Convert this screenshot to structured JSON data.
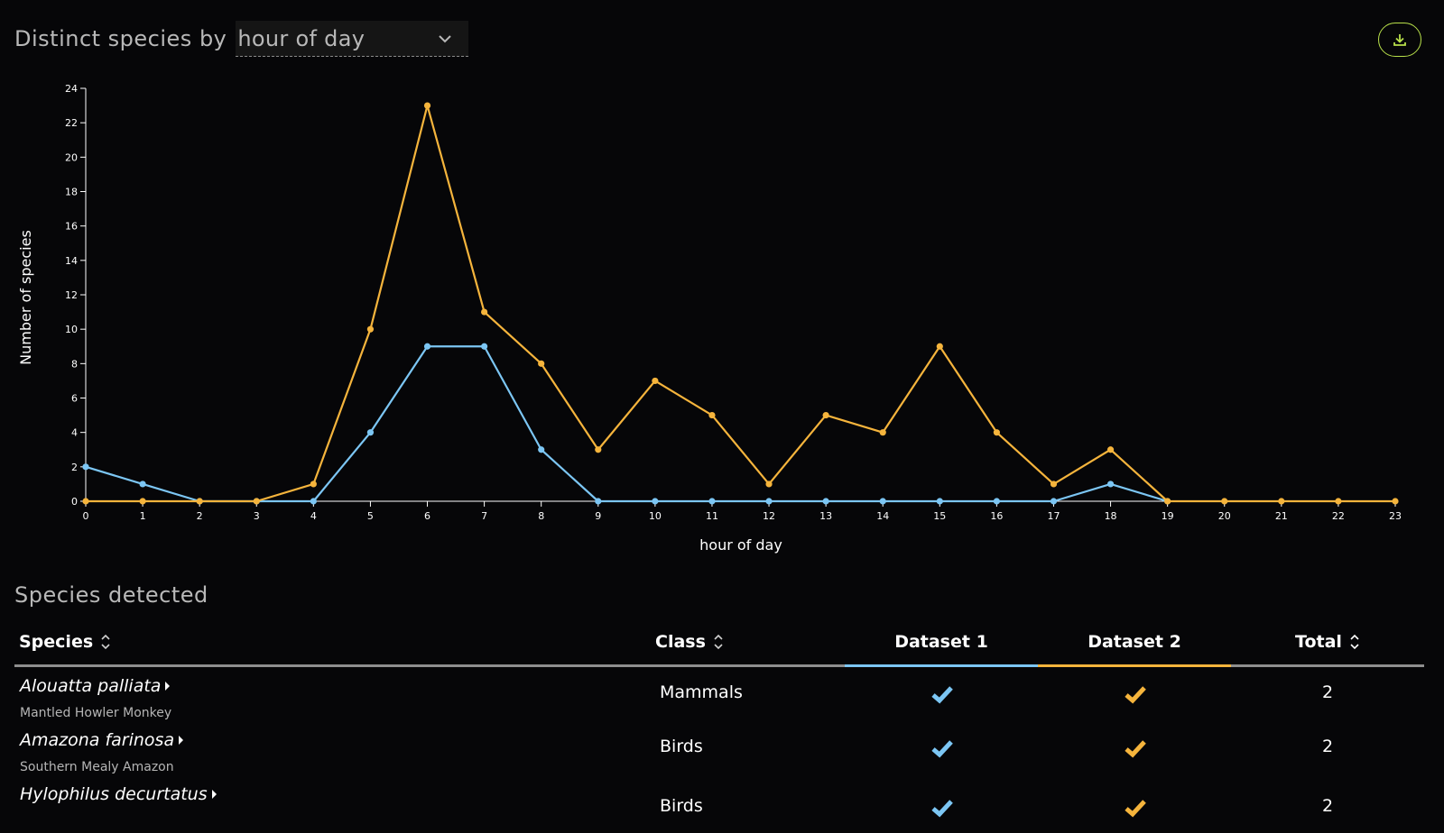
{
  "header": {
    "title_prefix": "Distinct species by",
    "group_by_value": "hour of day",
    "download_icon": "download-icon"
  },
  "colors": {
    "dataset1": "#7cc6f4",
    "dataset2": "#f5b43c",
    "accent": "#b8e04a"
  },
  "chart_data": {
    "type": "line",
    "xlabel": "hour of day",
    "ylabel": "Number of species",
    "x": [
      0,
      1,
      2,
      3,
      4,
      5,
      6,
      7,
      8,
      9,
      10,
      11,
      12,
      13,
      14,
      15,
      16,
      17,
      18,
      19,
      20,
      21,
      22,
      23
    ],
    "ylim": [
      0,
      24
    ],
    "yticks": [
      0,
      2,
      4,
      6,
      8,
      10,
      12,
      14,
      16,
      18,
      20,
      22,
      24
    ],
    "grid": false,
    "series": [
      {
        "color": "#7cc6f4",
        "values": [
          2,
          1,
          0,
          0,
          0,
          4,
          9,
          9,
          3,
          0,
          0,
          0,
          0,
          0,
          0,
          0,
          0,
          0,
          1,
          0,
          null,
          null,
          null,
          null
        ]
      },
      {
        "color": "#f5b43c",
        "values": [
          0,
          0,
          0,
          0,
          1,
          10,
          23,
          11,
          8,
          3,
          7,
          5,
          1,
          5,
          4,
          9,
          4,
          1,
          3,
          0,
          0,
          0,
          0,
          0
        ]
      }
    ]
  },
  "species_section": {
    "title": "Species detected",
    "columns": {
      "species": "Species",
      "class": "Class",
      "dataset1": "Dataset 1",
      "dataset2": "Dataset 2",
      "total": "Total"
    },
    "rows": [
      {
        "scientific": "Alouatta palliata",
        "common": "Mantled Howler Monkey",
        "class": "Mammals",
        "dataset1": true,
        "dataset2": true,
        "total": "2"
      },
      {
        "scientific": "Amazona farinosa",
        "common": "Southern Mealy Amazon",
        "class": "Birds",
        "dataset1": true,
        "dataset2": true,
        "total": "2"
      },
      {
        "scientific": "Hylophilus decurtatus",
        "common": "",
        "class": "Birds",
        "dataset1": true,
        "dataset2": true,
        "total": "2"
      }
    ]
  }
}
